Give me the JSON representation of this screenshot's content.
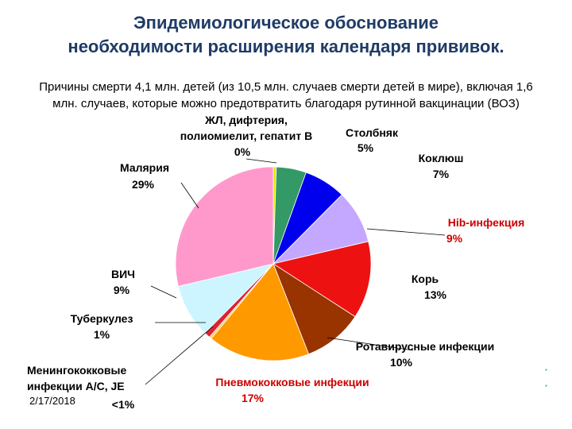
{
  "title": {
    "line1": "Эпидемиологическое обоснование",
    "line2": "необходимости расширения календаря прививок."
  },
  "subtitle": {
    "line1": "Причины смерти 4,1 млн. детей (из 10,5 млн. случаев смерти детей в мире), включая 1,6",
    "line2": "млн. случаев, которые можно предотвратить благодаря рутинной вакцинации (ВОЗ)"
  },
  "date": "2/17/2018",
  "chart_data": {
    "type": "pie",
    "start_angle_deg": 0,
    "direction": "clockwise",
    "slices": [
      {
        "name_lines": [
          "ЖЛ, дифтерия,",
          "полиомиелит, гепатит В"
        ],
        "value_label": "0%",
        "value": 0.5,
        "color": "#e6e600"
      },
      {
        "name_lines": [
          "Столбняк"
        ],
        "value_label": "5%",
        "value": 5,
        "color": "#339966"
      },
      {
        "name_lines": [
          "Коклюш"
        ],
        "value_label": "7%",
        "value": 7,
        "color": "#0000ee"
      },
      {
        "name_lines": [
          "Hib-инфекция"
        ],
        "value_label": "9%",
        "value": 9,
        "color": "#c4a8ff"
      },
      {
        "name_lines": [
          "Корь"
        ],
        "value_label": "13%",
        "value": 13,
        "color": "#ee1111"
      },
      {
        "name_lines": [
          "Ротавирусные инфекции"
        ],
        "value_label": "10%",
        "value": 10,
        "color": "#993300"
      },
      {
        "name_lines": [
          "Пневмококковые инфекции"
        ],
        "value_label": "17%",
        "value": 17,
        "color": "#ff9900"
      },
      {
        "name_lines": [
          "Менингококковые",
          "инфекции A/C, JE"
        ],
        "value_label": "<1%",
        "value": 0.4,
        "color": "#ffcc66"
      },
      {
        "name_lines": [
          "Туберкулез"
        ],
        "value_label": "1%",
        "value": 1,
        "color": "#dd2233"
      },
      {
        "name_lines": [
          "ВИЧ"
        ],
        "value_label": "9%",
        "value": 9,
        "color": "#ccf5ff"
      },
      {
        "name_lines": [
          "Малярия"
        ],
        "value_label": "29%",
        "value": 29,
        "color": "#ff99cc"
      }
    ]
  }
}
